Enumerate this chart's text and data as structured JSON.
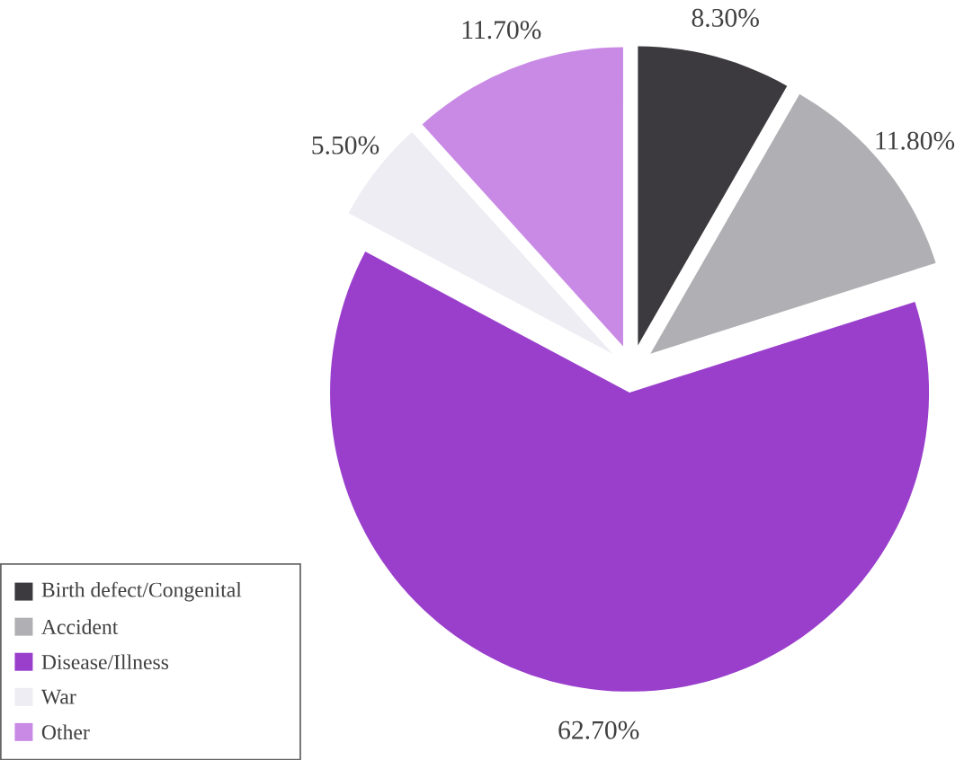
{
  "chart_data": {
    "type": "pie",
    "categories": [
      "Birth defect/Congenital",
      "Accident",
      "Disease/Illness",
      "War",
      "Other"
    ],
    "values": [
      8.3,
      11.8,
      62.7,
      5.5,
      11.7
    ],
    "colors": [
      "#3c3a3e",
      "#b0b0b4",
      "#9a3fcc",
      "#ededf3",
      "#c98ae6"
    ],
    "value_labels": [
      "8.30%",
      "11.80%",
      "62.70%",
      "5.50%",
      "11.70%"
    ],
    "legend": "bottom left"
  }
}
